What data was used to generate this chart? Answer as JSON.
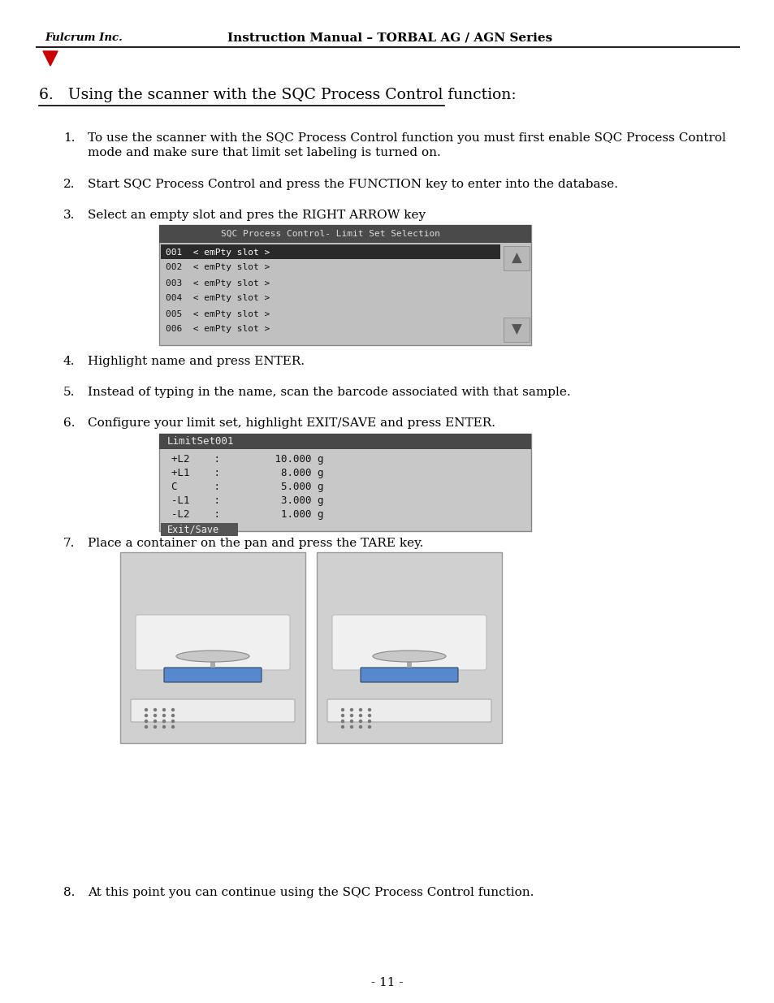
{
  "header_logo": "Fulcrum Inc.",
  "header_title": "Instruction Manual – TORBAL AG / AGN Series",
  "section_heading": "6.   Using the scanner with the SQC Process Control function:",
  "item1_line1": "To use the scanner with the SQC Process Control function you must first enable SQC Process Control",
  "item1_line2": "mode and make sure that limit set labeling is turned on.",
  "item2_text": "Start SQC Process Control and press the FUNCTION key to enter into the database.",
  "item3_text": "Select an empty slot and pres the RIGHT ARROW key",
  "item4_text": "Highlight name and press ENTER.",
  "item5_text": "Instead of typing in the name, scan the barcode associated with that sample.",
  "item6_text": "Configure your limit set, highlight EXIT/SAVE and press ENTER.",
  "item7_text": "Place a container on the pan and press the TARE key.",
  "item8_text": "At this point you can continue using the SQC Process Control function.",
  "screen1_title": "SQC Process Control- Limit Set Selection",
  "screen1_rows": [
    {
      "num": "001",
      "text": "< emPty slot >",
      "sel": true
    },
    {
      "num": "002",
      "text": "< emPty slot >",
      "sel": false
    },
    {
      "num": "003",
      "text": "< emPty slot >",
      "sel": false
    },
    {
      "num": "004",
      "text": "< emPty slot >",
      "sel": false
    },
    {
      "num": "005",
      "text": "< emPty slot >",
      "sel": false
    },
    {
      "num": "006",
      "text": "< emPty slot >",
      "sel": false
    }
  ],
  "screen2_title": "LimitSet001",
  "screen2_rows": [
    "+L2    :         10.000 g",
    "+L1    :          8.000 g",
    "C      :          5.000 g",
    "-L1    :          3.000 g",
    "-L2    :          1.000 g"
  ],
  "screen2_footer": "Exit/Save",
  "page_number": "- 11 -",
  "bg": "#ffffff",
  "fg": "#000000",
  "red": "#cc0000"
}
